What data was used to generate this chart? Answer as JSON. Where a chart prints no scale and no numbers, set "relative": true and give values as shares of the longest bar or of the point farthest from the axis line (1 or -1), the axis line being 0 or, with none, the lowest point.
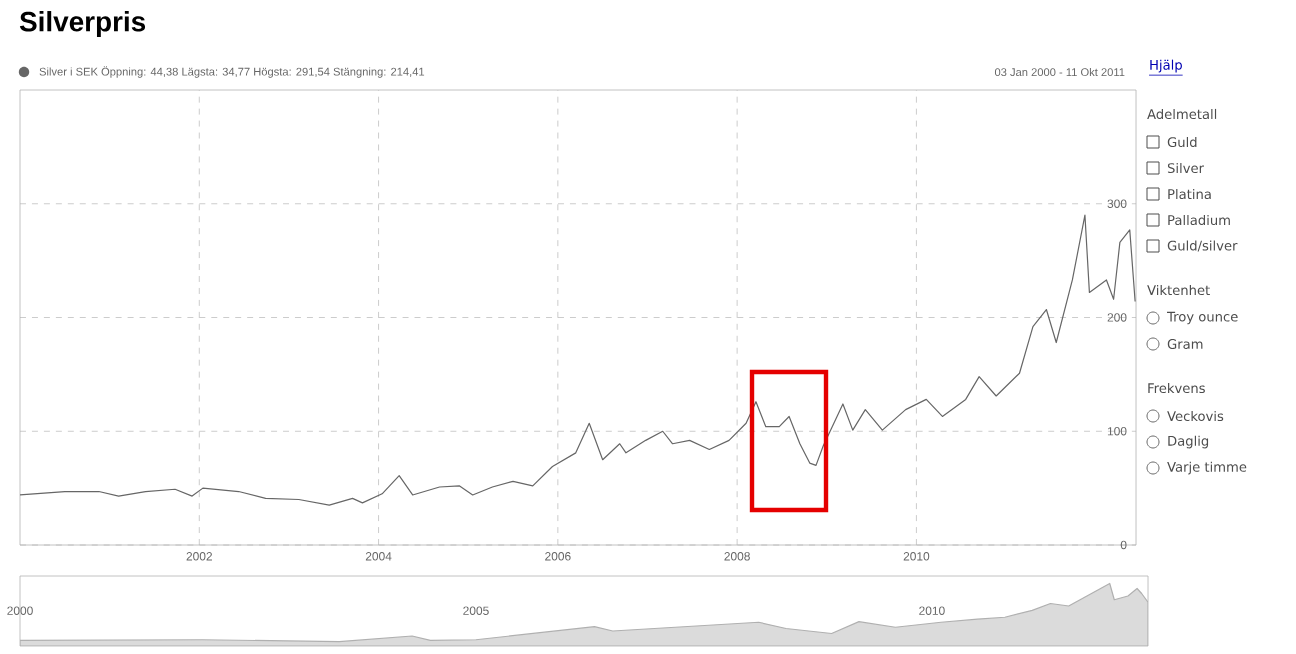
{
  "chart_data": [
    {
      "type": "line",
      "title": "Silverpris",
      "subtitle": "Silver i SEK Öppning: 44,38  Lägsta: 34,77  Högsta: 291,54  Stängning: 214,41",
      "annotations": [
        "03 Jan 2000 - 11 Okt 2011"
      ],
      "x": [
        2000.0,
        2000.5,
        2000.88,
        2001.1,
        2001.4,
        2001.73,
        2001.92,
        2002.04,
        2002.44,
        2002.74,
        2003.11,
        2003.45,
        2003.71,
        2003.82,
        2004.04,
        2004.23,
        2004.38,
        2004.68,
        2004.9,
        2005.05,
        2005.27,
        2005.5,
        2005.72,
        2005.94,
        2006.2,
        2006.35,
        2006.5,
        2006.69,
        2006.76,
        2006.98,
        2007.17,
        2007.28,
        2007.47,
        2007.69,
        2007.91,
        2008.1,
        2008.21,
        2008.32,
        2008.47,
        2008.58,
        2008.7,
        2008.81,
        2008.88,
        2008.96,
        2009.18,
        2009.29,
        2009.43,
        2009.62,
        2009.88,
        2010.11,
        2010.29,
        2010.55,
        2010.7,
        2010.89,
        2011.15,
        2011.3,
        2011.45,
        2011.56,
        2011.74,
        2011.88,
        2011.93,
        2012.12,
        2012.2,
        2012.27,
        2012.38,
        2012.44
      ],
      "series": [
        {
          "color": "#666666",
          "values": [
            44,
            47,
            47,
            43,
            47,
            49,
            43,
            50,
            47,
            41,
            40,
            35,
            41,
            37,
            45,
            61,
            44,
            51,
            52,
            44,
            51,
            56,
            52,
            69,
            81,
            107,
            75,
            89,
            81,
            92,
            100,
            89,
            92,
            84,
            92,
            107,
            126,
            104,
            104,
            113,
            89,
            72,
            70,
            87,
            124,
            101,
            119,
            101,
            119,
            128,
            113,
            128,
            148,
            131,
            151,
            192,
            207,
            178,
            233,
            290,
            222,
            233,
            216,
            266,
            277,
            214
          ]
        }
      ],
      "line_style": "solid",
      "xlim": [
        2000,
        2012.45
      ],
      "ylim": [
        0,
        400
      ],
      "xticks": [
        2002,
        2004,
        2006,
        2008,
        2010
      ],
      "yticks": [
        0,
        100,
        200,
        300
      ],
      "grid": true
    },
    {
      "type": "area",
      "relative": true,
      "x": [
        2000.0,
        2002.0,
        2003.5,
        2004.3,
        2004.5,
        2005.0,
        2006.3,
        2006.5,
        2008.1,
        2008.4,
        2008.9,
        2009.2,
        2009.6,
        2010.1,
        2010.5,
        2010.8,
        2011.1,
        2011.3,
        2011.5,
        2011.8,
        2011.95,
        2012.0,
        2012.15,
        2012.25,
        2012.3,
        2012.37
      ],
      "series": [
        {
          "color": "#b0b0b0",
          "values": [
            0.09,
            0.1,
            0.07,
            0.16,
            0.09,
            0.1,
            0.31,
            0.24,
            0.38,
            0.28,
            0.2,
            0.39,
            0.3,
            0.38,
            0.43,
            0.46,
            0.57,
            0.68,
            0.64,
            0.88,
            1.0,
            0.74,
            0.8,
            0.92,
            0.84,
            0.7
          ]
        }
      ],
      "xlim": [
        2000,
        2012.37
      ],
      "xticks": [
        2000,
        2005,
        2010
      ]
    },
    {
      "type": "other",
      "annotations": [
        "Hjälp",
        "Adelmetall",
        "Guld",
        "Silver",
        "Platina",
        "Palladium",
        "Guld/silver",
        "Viktenhet",
        "Troy ounce",
        "Gram",
        "Frekvens",
        "Veckovis",
        "Daglig",
        "Varje timme"
      ]
    }
  ]
}
